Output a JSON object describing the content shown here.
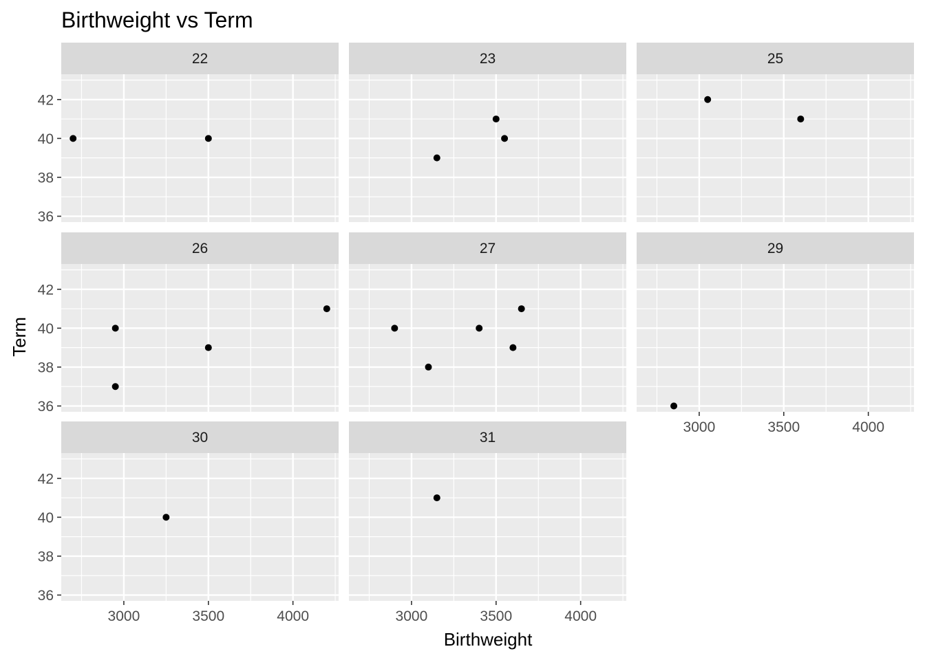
{
  "chart_data": {
    "type": "scatter",
    "title": "Birthweight vs Term",
    "xlabel": "Birthweight",
    "ylabel": "Term",
    "xlim": [
      2630,
      4270
    ],
    "ylim": [
      35.7,
      43.3
    ],
    "x_ticks": [
      3000,
      3500,
      4000
    ],
    "y_ticks": [
      36,
      38,
      40,
      42
    ],
    "grid": true,
    "facet_columns": 3,
    "colors": {
      "panel_background": "#ebebeb",
      "strip_background": "#d9d9d9",
      "grid": "#ffffff",
      "point": "#000000"
    },
    "facets": [
      {
        "label": "22",
        "points": [
          {
            "x": 2700,
            "y": 40
          },
          {
            "x": 3500,
            "y": 40
          }
        ]
      },
      {
        "label": "23",
        "points": [
          {
            "x": 3150,
            "y": 39
          },
          {
            "x": 3500,
            "y": 41
          },
          {
            "x": 3550,
            "y": 40
          }
        ]
      },
      {
        "label": "25",
        "points": [
          {
            "x": 3050,
            "y": 42
          },
          {
            "x": 3600,
            "y": 41
          }
        ]
      },
      {
        "label": "26",
        "points": [
          {
            "x": 2950,
            "y": 40
          },
          {
            "x": 2950,
            "y": 37
          },
          {
            "x": 3500,
            "y": 39
          },
          {
            "x": 4200,
            "y": 41
          }
        ]
      },
      {
        "label": "27",
        "points": [
          {
            "x": 2900,
            "y": 40
          },
          {
            "x": 3100,
            "y": 38
          },
          {
            "x": 3400,
            "y": 40
          },
          {
            "x": 3600,
            "y": 39
          },
          {
            "x": 3650,
            "y": 41
          }
        ]
      },
      {
        "label": "29",
        "points": [
          {
            "x": 2850,
            "y": 36
          }
        ]
      },
      {
        "label": "30",
        "points": [
          {
            "x": 3250,
            "y": 40
          }
        ]
      },
      {
        "label": "31",
        "points": [
          {
            "x": 3150,
            "y": 41
          }
        ]
      }
    ]
  }
}
